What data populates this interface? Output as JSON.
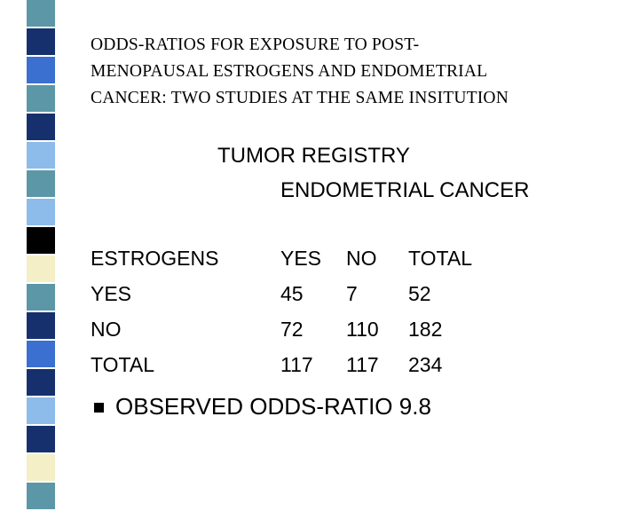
{
  "title_lines": [
    "ODDS-RATIOS FOR EXPOSURE TO POST-",
    "MENOPAUSAL ESTROGENS AND ENDOMETRIAL",
    "CANCER: TWO STUDIES AT THE SAME INSITUTION"
  ],
  "heading": "TUMOR REGISTRY",
  "subheading": "ENDOMETRIAL CANCER",
  "table": {
    "header": [
      "ESTROGENS",
      "YES",
      "NO",
      "TOTAL"
    ],
    "rows": [
      [
        "YES",
        45,
        7,
        52
      ],
      [
        "NO",
        72,
        110,
        182
      ],
      [
        "TOTAL",
        117,
        117,
        234
      ]
    ]
  },
  "bullet": "OBSERVED ODDS-RATIO  9.8"
}
